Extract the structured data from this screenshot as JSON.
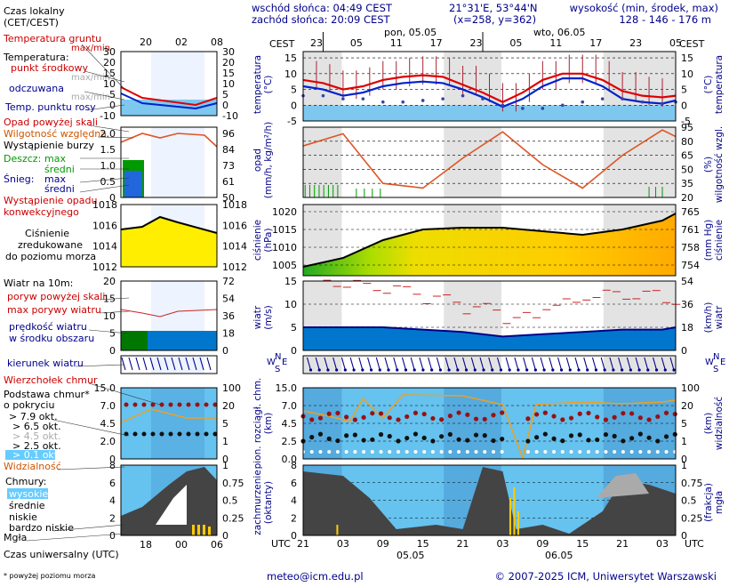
{
  "header": {
    "sunrise": "wschód słońca: 04:49 CEST",
    "sunset": "zachód słońca: 20:09 CEST",
    "coords": "21°31'E, 53°44'N",
    "grid": "(x=258, y=362)",
    "elevation_title": "wysokość (min, środek, max)",
    "elevation_values": "128 - 146 - 176 m"
  },
  "legend": {
    "local_time": "Czas lokalny",
    "local_time_sub": "(CET/CEST)",
    "soil_temp": "Temperatura gruntu",
    "soil_sub": "max/min",
    "temperature": "Temperatura:",
    "mid_point": "punkt środkowy",
    "max_min": "max/min",
    "perceived": "odczuwana",
    "dew_point": "Temp. punktu rosy",
    "precip_over": "Opad powyżej skali",
    "humidity": "Wilgotność względna",
    "storm": "Wystąpienie burzy",
    "rain": "Deszcz:",
    "rain_max": "max",
    "rain_avg": "średni",
    "snow": "Śnieg:",
    "snow_max": "max",
    "snow_avg": "średni",
    "conv1": "Wystąpienie opadu",
    "conv2": "konwekcyjnego",
    "pressure1": "Ciśnienie",
    "pressure2": "zredukowane",
    "pressure3": "do poziomu morza",
    "wind_title": "Wiatr na 10m:",
    "gust_over": "poryw powyżej skali",
    "gust_max": "max porywy wiatru",
    "wind_speed": "prędkość wiatru",
    "wind_area": "w środku obszaru",
    "wind_dir": "kierunek wiatru",
    "cloud_top": "Wierzchołek chmur",
    "cloud_base1": "Podstawa chmur*",
    "cloud_base2": "o pokryciu",
    "okt79": "> 7.9 okt.",
    "okt65": "> 6.5 okt.",
    "okt45": "> 4.5 okt.",
    "okt25": "> 2.5 okt.",
    "okt01": "> 0.1 okt.",
    "visibility": "Widzialność",
    "clouds": "Chmury:",
    "high": "wysokie",
    "middle": "średnie",
    "low": "niskie",
    "very_low": "bardzo niskie",
    "fog": "Mgła",
    "utc": "Czas uniwersalny (UTC)",
    "footnote": "* powyżej poziomu morza"
  },
  "mini_axes": {
    "local_ticks": [
      "20",
      "02",
      "08"
    ],
    "utc_ticks": [
      "18",
      "00",
      "06"
    ],
    "temp_left": [
      "30",
      "20",
      "15",
      "10",
      "5",
      "0",
      "-10"
    ],
    "temp_right": [
      "30",
      "20",
      "15",
      "10",
      "5",
      "0",
      "-10"
    ],
    "precip_left": [
      "2.0",
      "1.5",
      "1.0",
      "0.5",
      "0"
    ],
    "hum_right": [
      "96",
      "84",
      "73",
      "61",
      "50"
    ],
    "press_left": [
      "1018",
      "1016",
      "1014",
      "1012"
    ],
    "press_right": [
      "1018",
      "1016",
      "1014",
      "1012"
    ],
    "wind_left": [
      "20",
      "15",
      "10",
      "5",
      "0"
    ],
    "wind_right": [
      "72",
      "54",
      "36",
      "18",
      "0"
    ],
    "cloud_left": [
      "15.0",
      "7.0",
      "4.5",
      "2.0",
      "0"
    ],
    "cloud_right": [
      "100",
      "20",
      "5",
      "1",
      "0"
    ],
    "cc_left": [
      "8",
      "6",
      "4",
      "2",
      "0"
    ],
    "cc_right": [
      "1",
      "0.75",
      "0.5",
      "0.25",
      "0"
    ]
  },
  "main_axes": {
    "cest": "CEST",
    "utc": "UTC",
    "top_ticks": [
      "23",
      "05",
      "11",
      "17",
      "23",
      "05",
      "11",
      "17",
      "23",
      "05"
    ],
    "bottom_ticks": [
      "21",
      "03",
      "09",
      "15",
      "21",
      "03",
      "09",
      "15",
      "21",
      "03"
    ],
    "day1_top": "pon, 05.05",
    "day2_top": "wto, 06.05",
    "day1_bottom": "05.05",
    "day2_bottom": "06.05",
    "temp_label_left": "temperatura",
    "temp_unit_left": "(°C)",
    "temp_label_right": "temperatura",
    "temp_unit_right": "(°C)",
    "temp_ticks": [
      "15",
      "10",
      "5",
      "0",
      "-5"
    ],
    "precip_label_left": "opad",
    "precip_unit_left": "(mm/h, kg/m²/h)",
    "hum_label_right": "wilgotność wzgl.",
    "hum_unit_right": "(%)",
    "hum_ticks": [
      "95",
      "80",
      "65",
      "50",
      "35",
      "20"
    ],
    "press_label_left": "ciśnienie",
    "press_unit_left": "(hPa)",
    "press_label_right": "ciśnienie",
    "press_unit_right": "(mm Hg)",
    "press_ticks_left": [
      "1020",
      "1015",
      "1010",
      "1005"
    ],
    "press_ticks_right": [
      "765",
      "761",
      "758",
      "754"
    ],
    "wind_label_left": "wiatr",
    "wind_unit_left": "(m/s)",
    "wind_label_right": "wiatr",
    "wind_unit_right": "(km/h)",
    "wind_ticks_left": [
      "15",
      "10",
      "5",
      "0"
    ],
    "wind_ticks_right": [
      "54",
      "36",
      "18",
      "0"
    ],
    "dir_n": "N",
    "dir_w": "W",
    "dir_e": "E",
    "dir_s": "S",
    "cloud_label_left": "pion. rozciągł. chm.",
    "cloud_unit_left": "(km)",
    "vis_label_right": "widzialność",
    "vis_unit_right": "(km)",
    "cloud_ticks_left": [
      "15.0",
      "7.0",
      "4.5",
      "2.5",
      "0.0"
    ],
    "vis_ticks_right": [
      "100",
      "20",
      "5",
      "1",
      "0"
    ],
    "cc_label_left": "zachmurzenie",
    "cc_unit_left": "(oktanty)",
    "fog_label_right": "mgła",
    "fog_unit_right": "(frakcja)",
    "cc_ticks_left": [
      "8",
      "6",
      "4",
      "2",
      "0"
    ],
    "fog_ticks_right": [
      "1",
      "0.75",
      "0.5",
      "0.25",
      "0"
    ]
  },
  "footer": {
    "email": "meteo@icm.edu.pl",
    "copyright": "© 2007-2025 ICM, Uniwersytet Warszawski"
  },
  "chart_data": [
    {
      "type": "line",
      "name": "temperature",
      "x": [
        "2025-05-04 21:00",
        "2025-05-05 00:00",
        "2025-05-05 03:00",
        "2025-05-05 06:00",
        "2025-05-05 09:00",
        "2025-05-05 12:00",
        "2025-05-05 15:00",
        "2025-05-05 18:00",
        "2025-05-05 21:00",
        "2025-05-06 00:00",
        "2025-05-06 03:00",
        "2025-05-06 06:00",
        "2025-05-06 09:00",
        "2025-05-06 12:00",
        "2025-05-06 15:00",
        "2025-05-06 18:00",
        "2025-05-06 21:00",
        "2025-05-07 00:00",
        "2025-05-07 03:00",
        "2025-05-07 05:00"
      ],
      "series": [
        {
          "name": "punkt środkowy",
          "values": [
            8,
            7,
            5,
            6,
            8,
            9,
            9.5,
            9,
            6.5,
            4,
            1,
            4,
            8,
            10,
            10,
            8,
            4.5,
            3,
            2.5,
            3
          ]
        },
        {
          "name": "odczuwana",
          "values": [
            6,
            5,
            3,
            4,
            6,
            7,
            7.5,
            7,
            5,
            2.5,
            -0.5,
            2,
            6,
            8.5,
            8.5,
            6,
            2,
            1,
            0.5,
            1.5
          ]
        },
        {
          "name": "Temp. punktu rosy",
          "values": [
            3,
            3,
            2,
            2,
            1,
            1,
            1.5,
            2,
            3,
            2,
            0,
            -1,
            -1,
            0,
            1,
            2,
            2,
            1,
            0.5,
            1
          ]
        }
      ],
      "ylim": [
        -5,
        17
      ]
    },
    {
      "type": "line",
      "name": "humidity",
      "x": [
        "2025-05-04 21:00",
        "2025-05-05 03:00",
        "2025-05-05 09:00",
        "2025-05-05 15:00",
        "2025-05-05 21:00",
        "2025-05-06 03:00",
        "2025-05-06 09:00",
        "2025-05-06 15:00",
        "2025-05-06 21:00",
        "2025-05-07 03:00",
        "2025-05-07 05:00"
      ],
      "series": [
        {
          "name": "Wilgotność względna",
          "values": [
            75,
            88,
            35,
            30,
            62,
            90,
            55,
            30,
            65,
            92,
            85
          ]
        }
      ],
      "ylim": [
        20,
        95
      ]
    },
    {
      "type": "area",
      "name": "pressure",
      "x": [
        "2025-05-04 21:00",
        "2025-05-05 03:00",
        "2025-05-05 09:00",
        "2025-05-05 15:00",
        "2025-05-05 21:00",
        "2025-05-06 03:00",
        "2025-05-06 09:00",
        "2025-05-06 15:00",
        "2025-05-06 21:00",
        "2025-05-07 03:00",
        "2025-05-07 05:00"
      ],
      "values": [
        1004.5,
        1007,
        1012,
        1015,
        1015.5,
        1015.5,
        1014.5,
        1013.5,
        1015,
        1017.5,
        1019.5
      ],
      "ylim": [
        1002,
        1022
      ]
    },
    {
      "type": "line",
      "name": "wind",
      "x": [
        "2025-05-04 21:00",
        "2025-05-05 03:00",
        "2025-05-05 09:00",
        "2025-05-05 15:00",
        "2025-05-05 21:00",
        "2025-05-06 03:00",
        "2025-05-06 09:00",
        "2025-05-06 15:00",
        "2025-05-06 21:00",
        "2025-05-07 03:00",
        "2025-05-07 05:00"
      ],
      "series": [
        {
          "name": "max porywy wiatru",
          "values": [
            15,
            14,
            13,
            11,
            9,
            7,
            10,
            12,
            12,
            11,
            11
          ]
        },
        {
          "name": "prędkość wiatru",
          "values": [
            5,
            5,
            5,
            4.5,
            4,
            3,
            3.5,
            4,
            4.5,
            4.5,
            5
          ]
        }
      ],
      "ylim": [
        0,
        15
      ]
    }
  ]
}
